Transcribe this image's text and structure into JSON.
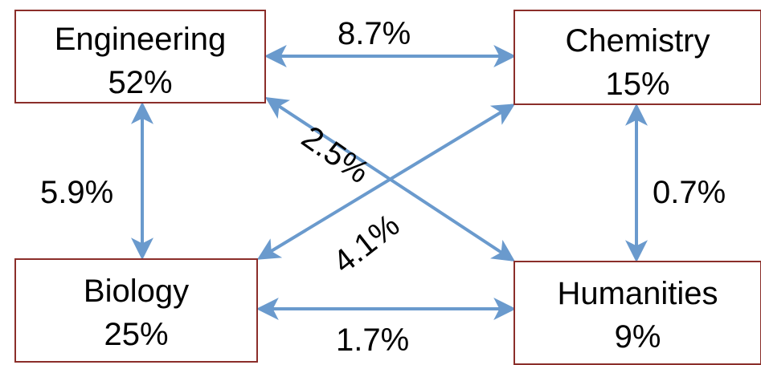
{
  "nodes": {
    "engineering": {
      "label": "Engineering",
      "share": "52%"
    },
    "chemistry": {
      "label": "Chemistry",
      "share": "15%"
    },
    "biology": {
      "label": "Biology",
      "share": "25%"
    },
    "humanities": {
      "label": "Humanities",
      "share": "9%"
    }
  },
  "edges": {
    "engineering_chemistry": "8.7%",
    "biology_humanities": "1.7%",
    "engineering_biology": "5.9%",
    "chemistry_humanities": "0.7%",
    "engineering_humanities": "2.5%",
    "chemistry_biology": "4.1%"
  },
  "colors": {
    "arrow": "#6A9ACD",
    "box_border": "#8B2E2A",
    "text": "#000000"
  }
}
